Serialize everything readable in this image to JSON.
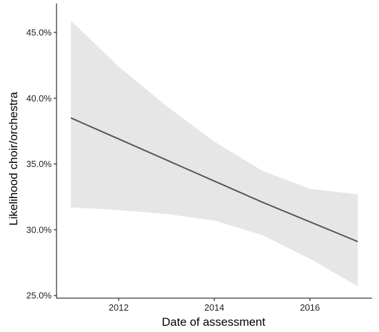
{
  "chart_data": {
    "type": "line",
    "title": "",
    "xlabel": "Date of assessment",
    "ylabel": "Likelihood choir/orchestra",
    "x_ticks": [
      "2012",
      "2014",
      "2016"
    ],
    "y_ticks": [
      "25.0%",
      "30.0%",
      "35.0%",
      "40.0%",
      "45.0%"
    ],
    "xlim": [
      2010.7,
      2017.3
    ],
    "ylim": [
      24.8,
      47.2
    ],
    "grid": false,
    "series": [
      {
        "x": [
          2011.0,
          2012.0,
          2013.0,
          2014.0,
          2015.0,
          2016.0,
          2017.0
        ],
        "y": [
          38.5,
          36.9,
          35.3,
          33.7,
          32.1,
          30.6,
          29.1
        ],
        "ci_lower": [
          31.7,
          31.5,
          31.2,
          30.7,
          29.6,
          27.8,
          25.7
        ],
        "ci_upper": [
          45.9,
          42.4,
          39.4,
          36.7,
          34.5,
          33.1,
          32.7
        ]
      }
    ],
    "colors": {
      "line": "#555555",
      "ribbon": "#e6e6e6",
      "axis": "#000000"
    }
  }
}
